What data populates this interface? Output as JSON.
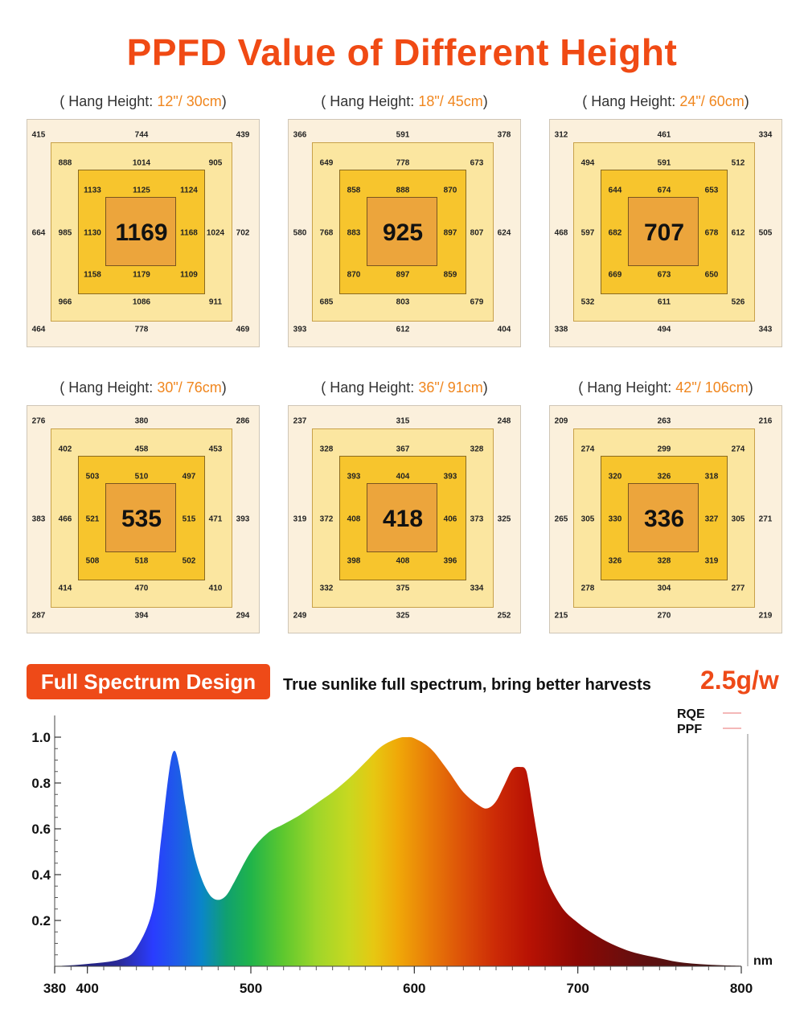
{
  "title": "PPFD Value of Different Height",
  "panels": [
    {
      "label_pre": "( Hang Height: ",
      "height": "12\"/ 30cm",
      "label_post": ")",
      "outer": {
        "tl": "415",
        "t": "744",
        "tr": "439",
        "l": "664",
        "r": "702",
        "bl": "464",
        "b": "778",
        "br": "469"
      },
      "mid": {
        "tl": "888",
        "t": "1014",
        "tr": "905",
        "l": "985",
        "r": "1024",
        "bl": "966",
        "b": "1086",
        "br": "911"
      },
      "inner": {
        "tl": "1133",
        "t": "1125",
        "tr": "1124",
        "l": "1130",
        "r": "1168",
        "bl": "1158",
        "b": "1179",
        "br": "1109"
      },
      "center": "1169"
    },
    {
      "label_pre": "( Hang Height: ",
      "height": "18\"/ 45cm",
      "label_post": ")",
      "outer": {
        "tl": "366",
        "t": "591",
        "tr": "378",
        "l": "580",
        "r": "624",
        "bl": "393",
        "b": "612",
        "br": "404"
      },
      "mid": {
        "tl": "649",
        "t": "778",
        "tr": "673",
        "l": "768",
        "r": "807",
        "bl": "685",
        "b": "803",
        "br": "679"
      },
      "inner": {
        "tl": "858",
        "t": "888",
        "tr": "870",
        "l": "883",
        "r": "897",
        "bl": "870",
        "b": "897",
        "br": "859"
      },
      "center": "925"
    },
    {
      "label_pre": "( Hang Height: ",
      "height": "24\"/ 60cm",
      "label_post": ")",
      "outer": {
        "tl": "312",
        "t": "461",
        "tr": "334",
        "l": "468",
        "r": "505",
        "bl": "338",
        "b": "494",
        "br": "343"
      },
      "mid": {
        "tl": "494",
        "t": "591",
        "tr": "512",
        "l": "597",
        "r": "612",
        "bl": "532",
        "b": "611",
        "br": "526"
      },
      "inner": {
        "tl": "644",
        "t": "674",
        "tr": "653",
        "l": "682",
        "r": "678",
        "bl": "669",
        "b": "673",
        "br": "650"
      },
      "center": "707"
    },
    {
      "label_pre": "( Hang Height: ",
      "height": "30\"/ 76cm",
      "label_post": ")",
      "outer": {
        "tl": "276",
        "t": "380",
        "tr": "286",
        "l": "383",
        "r": "393",
        "bl": "287",
        "b": "394",
        "br": "294"
      },
      "mid": {
        "tl": "402",
        "t": "458",
        "tr": "453",
        "l": "466",
        "r": "471",
        "bl": "414",
        "b": "470",
        "br": "410"
      },
      "inner": {
        "tl": "503",
        "t": "510",
        "tr": "497",
        "l": "521",
        "r": "515",
        "bl": "508",
        "b": "518",
        "br": "502"
      },
      "center": "535"
    },
    {
      "label_pre": "( Hang Height: ",
      "height": "36\"/ 91cm",
      "label_post": ")",
      "outer": {
        "tl": "237",
        "t": "315",
        "tr": "248",
        "l": "319",
        "r": "325",
        "bl": "249",
        "b": "325",
        "br": "252"
      },
      "mid": {
        "tl": "328",
        "t": "367",
        "tr": "328",
        "l": "372",
        "r": "373",
        "bl": "332",
        "b": "375",
        "br": "334"
      },
      "inner": {
        "tl": "393",
        "t": "404",
        "tr": "393",
        "l": "408",
        "r": "406",
        "bl": "398",
        "b": "408",
        "br": "396"
      },
      "center": "418"
    },
    {
      "label_pre": "( Hang Height: ",
      "height": "42\"/ 106cm",
      "label_post": ")",
      "outer": {
        "tl": "209",
        "t": "263",
        "tr": "216",
        "l": "265",
        "r": "271",
        "bl": "215",
        "b": "270",
        "br": "219"
      },
      "mid": {
        "tl": "274",
        "t": "299",
        "tr": "274",
        "l": "305",
        "r": "305",
        "bl": "278",
        "b": "304",
        "br": "277"
      },
      "inner": {
        "tl": "320",
        "t": "326",
        "tr": "318",
        "l": "330",
        "r": "327",
        "bl": "326",
        "b": "328",
        "br": "319"
      },
      "center": "336"
    }
  ],
  "spectrum": {
    "badge": "Full Spectrum Design",
    "tagline": "True sunlike full spectrum, bring better harvests",
    "efficiency": "2.5g/w"
  },
  "chart_data": {
    "type": "area",
    "xunit": "nm",
    "xlim": [
      380,
      800
    ],
    "ylim": [
      0,
      1.0
    ],
    "xticks": [
      380,
      400,
      500,
      600,
      700,
      800
    ],
    "yticks": [
      0.2,
      0.4,
      0.6,
      0.8,
      1.0
    ],
    "legend": [
      "RQE",
      "PPF"
    ],
    "legend_position": "top-right",
    "series": [
      {
        "x": [
          380,
          400,
          420,
          430,
          440,
          445,
          450,
          453,
          456,
          460,
          465,
          470,
          475,
          480,
          485,
          490,
          500,
          510,
          520,
          530,
          540,
          550,
          560,
          570,
          580,
          590,
          595,
          600,
          610,
          620,
          630,
          640,
          645,
          650,
          655,
          660,
          665,
          668,
          670,
          675,
          680,
          690,
          700,
          710,
          720,
          730,
          740,
          750,
          760,
          770,
          780,
          790,
          800
        ],
        "y": [
          0.0,
          0.01,
          0.03,
          0.08,
          0.25,
          0.55,
          0.85,
          0.94,
          0.88,
          0.7,
          0.5,
          0.38,
          0.31,
          0.29,
          0.31,
          0.37,
          0.5,
          0.58,
          0.62,
          0.66,
          0.71,
          0.76,
          0.82,
          0.89,
          0.96,
          0.995,
          1.0,
          0.995,
          0.95,
          0.86,
          0.76,
          0.7,
          0.69,
          0.72,
          0.79,
          0.86,
          0.87,
          0.86,
          0.8,
          0.58,
          0.4,
          0.26,
          0.19,
          0.14,
          0.1,
          0.07,
          0.05,
          0.035,
          0.02,
          0.012,
          0.007,
          0.004,
          0.002
        ]
      }
    ]
  }
}
